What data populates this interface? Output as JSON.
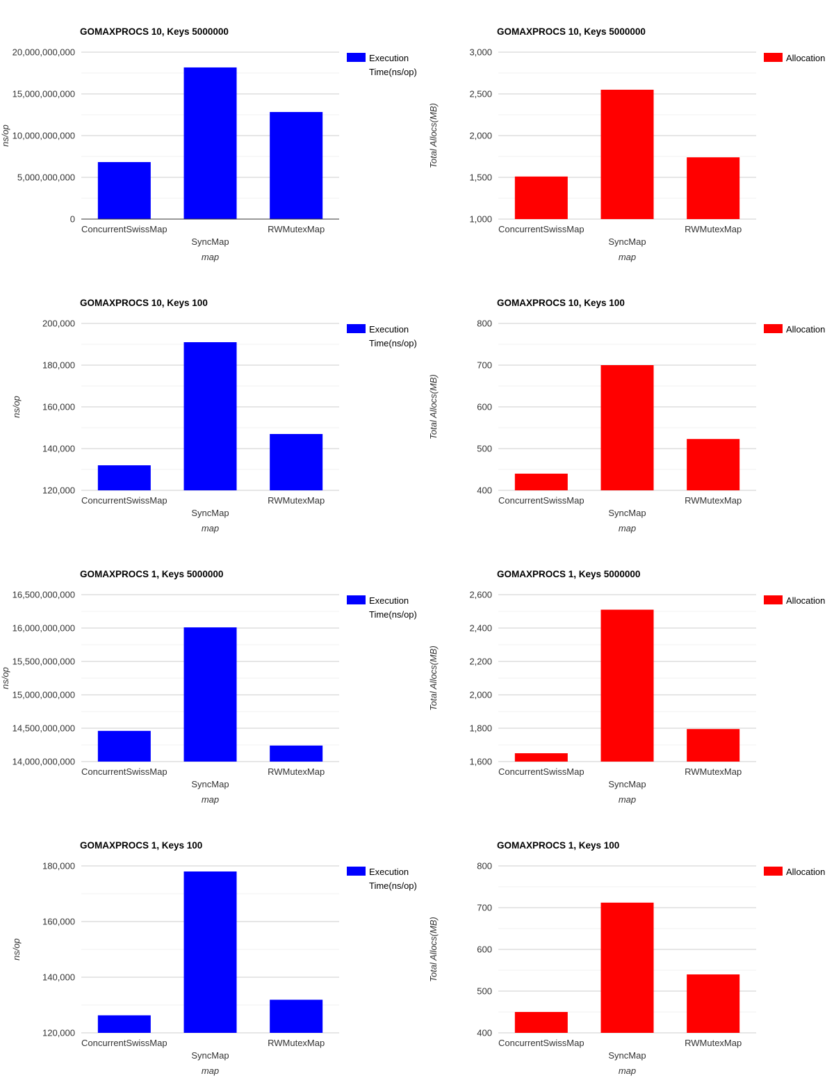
{
  "page": {
    "background": "#ffffff"
  },
  "chart_data": [
    {
      "type": "bar",
      "title": "GOMAXPROCS 10, Keys 5000000",
      "xlabel": "map",
      "ylabel": "ns/op",
      "legend": "Execution Time(ns/op)",
      "legend_position": "right",
      "grid": true,
      "color": "#0000ff",
      "categories": [
        "ConcurrentSwissMap",
        "SyncMap",
        "RWMutexMap"
      ],
      "values": [
        6830000000,
        18170000000,
        12830000000
      ],
      "ymin": 0,
      "ymax": 20000000000,
      "ystep": 5000000000,
      "yticks": [
        "0",
        "5,000,000,000",
        "10,000,000,000",
        "15,000,000,000",
        "20,000,000,000"
      ]
    },
    {
      "type": "bar",
      "title": "GOMAXPROCS 10, Keys 5000000",
      "xlabel": "map",
      "ylabel": "Total Allocs(MB)",
      "legend": "Allocation",
      "legend_position": "right",
      "grid": true,
      "color": "#ff0000",
      "categories": [
        "ConcurrentSwissMap",
        "SyncMap",
        "RWMutexMap"
      ],
      "values": [
        1510,
        2550,
        1740
      ],
      "ymin": 1000,
      "ymax": 3000,
      "ystep": 500,
      "yticks": [
        "1,000",
        "1,500",
        "2,000",
        "2,500",
        "3,000"
      ]
    },
    {
      "type": "bar",
      "title": "GOMAXPROCS 10, Keys 100",
      "xlabel": "map",
      "ylabel": "ns/op",
      "legend": "Execution Time(ns/op)",
      "legend_position": "right",
      "grid": true,
      "color": "#0000ff",
      "categories": [
        "ConcurrentSwissMap",
        "SyncMap",
        "RWMutexMap"
      ],
      "values": [
        132000,
        191000,
        147000
      ],
      "ymin": 120000,
      "ymax": 200000,
      "ystep": 20000,
      "yticks": [
        "120,000",
        "140,000",
        "160,000",
        "180,000",
        "200,000"
      ]
    },
    {
      "type": "bar",
      "title": "GOMAXPROCS 10, Keys 100",
      "xlabel": "map",
      "ylabel": "Total Allocs(MB)",
      "legend": "Allocation",
      "legend_position": "right",
      "grid": true,
      "color": "#ff0000",
      "categories": [
        "ConcurrentSwissMap",
        "SyncMap",
        "RWMutexMap"
      ],
      "values": [
        440,
        700,
        523
      ],
      "ymin": 400,
      "ymax": 800,
      "ystep": 100,
      "yticks": [
        "400",
        "500",
        "600",
        "700",
        "800"
      ]
    },
    {
      "type": "bar",
      "title": "GOMAXPROCS 1, Keys 5000000",
      "xlabel": "map",
      "ylabel": "ns/op",
      "legend": "Execution Time(ns/op)",
      "legend_position": "right",
      "grid": true,
      "color": "#0000ff",
      "categories": [
        "ConcurrentSwissMap",
        "SyncMap",
        "RWMutexMap"
      ],
      "values": [
        14460000000,
        16010000000,
        14240000000
      ],
      "ymin": 14000000000,
      "ymax": 16500000000,
      "ystep": 500000000,
      "yticks": [
        "14,000,000,000",
        "14,500,000,000",
        "15,000,000,000",
        "15,500,000,000",
        "16,000,000,000",
        "16,500,000,000"
      ]
    },
    {
      "type": "bar",
      "title": "GOMAXPROCS 1, Keys 5000000",
      "xlabel": "map",
      "ylabel": "Total Allocs(MB)",
      "legend": "Allocation",
      "legend_position": "right",
      "grid": true,
      "color": "#ff0000",
      "categories": [
        "ConcurrentSwissMap",
        "SyncMap",
        "RWMutexMap"
      ],
      "values": [
        1650,
        2510,
        1795
      ],
      "ymin": 1600,
      "ymax": 2600,
      "ystep": 200,
      "yticks": [
        "1,600",
        "1,800",
        "2,000",
        "2,200",
        "2,400",
        "2,600"
      ]
    },
    {
      "type": "bar",
      "title": "GOMAXPROCS 1, Keys 100",
      "xlabel": "map",
      "ylabel": "ns/op",
      "legend": "Execution Time(ns/op)",
      "legend_position": "right",
      "grid": true,
      "color": "#0000ff",
      "categories": [
        "ConcurrentSwissMap",
        "SyncMap",
        "RWMutexMap"
      ],
      "values": [
        126300,
        178000,
        131900
      ],
      "ymin": 120000,
      "ymax": 180000,
      "ystep": 20000,
      "yticks": [
        "120,000",
        "140,000",
        "160,000",
        "180,000"
      ]
    },
    {
      "type": "bar",
      "title": "GOMAXPROCS 1, Keys 100",
      "xlabel": "map",
      "ylabel": "Total Allocs(MB)",
      "legend": "Allocation",
      "legend_position": "right",
      "grid": true,
      "color": "#ff0000",
      "categories": [
        "ConcurrentSwissMap",
        "SyncMap",
        "RWMutexMap"
      ],
      "values": [
        450,
        712,
        540
      ],
      "ymin": 400,
      "ymax": 800,
      "ystep": 100,
      "yticks": [
        "400",
        "500",
        "600",
        "700",
        "800"
      ]
    }
  ]
}
